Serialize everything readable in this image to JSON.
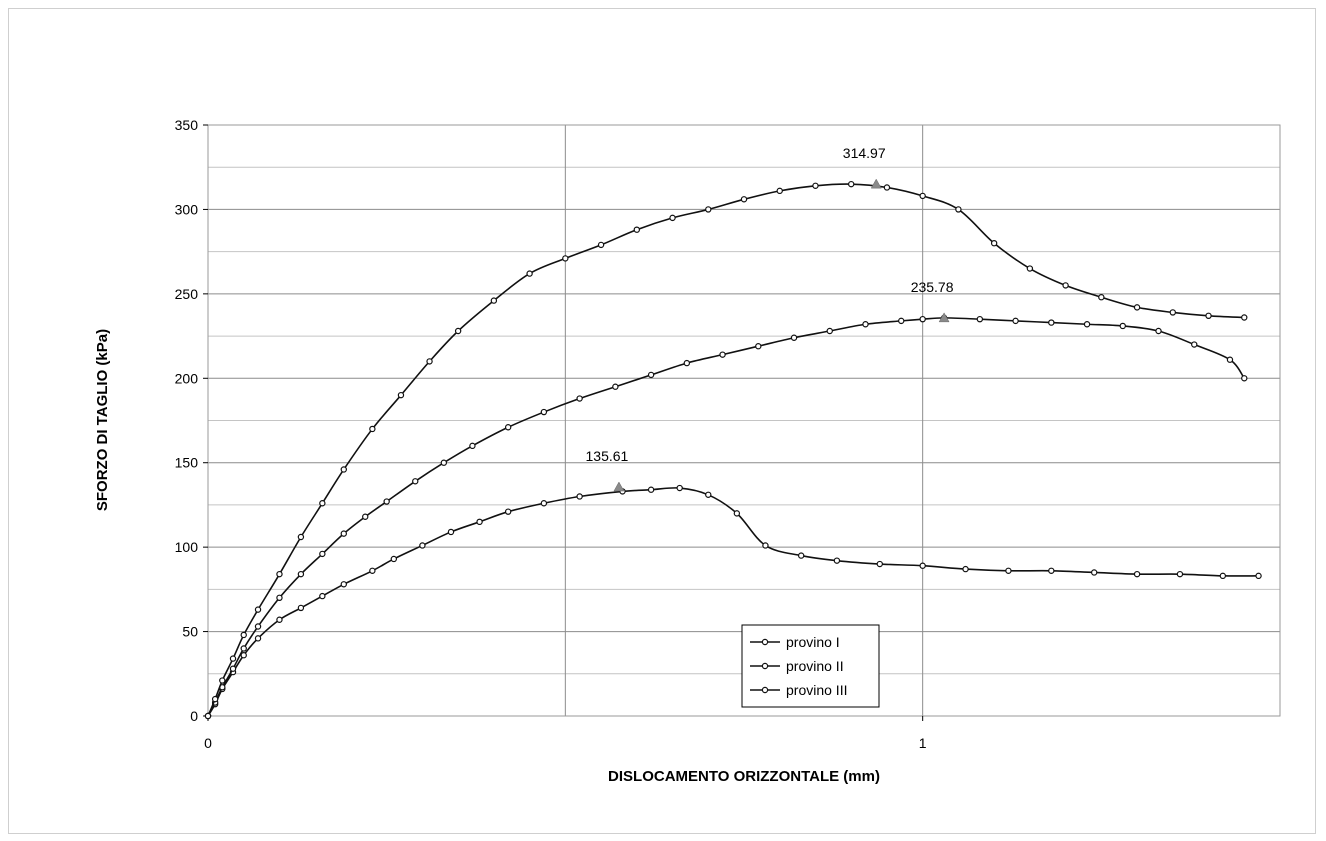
{
  "chart_data": {
    "type": "line",
    "xlabel": "DISLOCAMENTO ORIZZONTALE (mm)",
    "ylabel": "SFORZO DI TAGLIO (kPa)",
    "xlim": [
      0,
      1.5
    ],
    "ylim": [
      0,
      350
    ],
    "xticks": [
      0,
      1
    ],
    "xtick_labels": [
      "0",
      "1"
    ],
    "yticks": [
      0,
      50,
      100,
      150,
      200,
      250,
      300,
      350
    ],
    "grid": true,
    "legend_position": "bottom-center",
    "series": [
      {
        "name": "provino I",
        "peak": {
          "x": 0.575,
          "y": 135.61,
          "label": "135.61"
        },
        "x": [
          0,
          0.01,
          0.02,
          0.035,
          0.05,
          0.07,
          0.1,
          0.13,
          0.16,
          0.19,
          0.23,
          0.26,
          0.3,
          0.34,
          0.38,
          0.42,
          0.47,
          0.52,
          0.58,
          0.62,
          0.66,
          0.7,
          0.74,
          0.78,
          0.83,
          0.88,
          0.94,
          1,
          1.06,
          1.12,
          1.18,
          1.24,
          1.3,
          1.36,
          1.42,
          1.47
        ],
        "y": [
          0,
          7,
          16,
          26,
          36,
          46,
          57,
          64,
          71,
          78,
          86,
          93,
          101,
          109,
          115,
          121,
          126,
          130,
          133,
          134,
          135,
          131,
          120,
          101,
          95,
          92,
          90,
          89,
          87,
          86,
          86,
          85,
          84,
          84,
          83,
          83
        ]
      },
      {
        "name": "provino II",
        "peak": {
          "x": 1.03,
          "y": 235.78,
          "label": "235.78"
        },
        "x": [
          0,
          0.01,
          0.02,
          0.035,
          0.05,
          0.07,
          0.1,
          0.13,
          0.16,
          0.19,
          0.22,
          0.25,
          0.29,
          0.33,
          0.37,
          0.42,
          0.47,
          0.52,
          0.57,
          0.62,
          0.67,
          0.72,
          0.77,
          0.82,
          0.87,
          0.92,
          0.97,
          1,
          1.03,
          1.08,
          1.13,
          1.18,
          1.23,
          1.28,
          1.33,
          1.38,
          1.43,
          1.45
        ],
        "y": [
          0,
          8,
          17,
          28,
          40,
          53,
          70,
          84,
          96,
          108,
          118,
          127,
          139,
          150,
          160,
          171,
          180,
          188,
          195,
          202,
          209,
          214,
          219,
          224,
          228,
          232,
          234,
          235,
          235.78,
          235,
          234,
          233,
          232,
          231,
          228,
          220,
          211,
          200
        ]
      },
      {
        "name": "provino III",
        "peak": {
          "x": 0.935,
          "y": 314.97,
          "label": "314.97"
        },
        "x": [
          0,
          0.01,
          0.02,
          0.035,
          0.05,
          0.07,
          0.1,
          0.13,
          0.16,
          0.19,
          0.23,
          0.27,
          0.31,
          0.35,
          0.4,
          0.45,
          0.5,
          0.55,
          0.6,
          0.65,
          0.7,
          0.75,
          0.8,
          0.85,
          0.9,
          0.95,
          1,
          1.05,
          1.1,
          1.15,
          1.2,
          1.25,
          1.3,
          1.35,
          1.4,
          1.45
        ],
        "y": [
          0,
          10,
          21,
          34,
          48,
          63,
          84,
          106,
          126,
          146,
          170,
          190,
          210,
          228,
          246,
          262,
          271,
          279,
          288,
          295,
          300,
          306,
          311,
          314,
          314.97,
          313,
          308,
          300,
          280,
          265,
          255,
          248,
          242,
          239,
          237,
          236
        ]
      }
    ]
  }
}
